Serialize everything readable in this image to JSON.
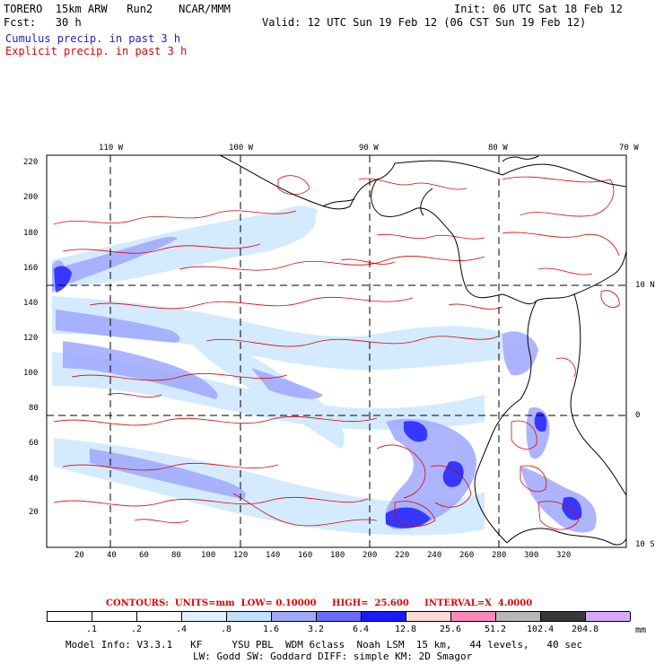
{
  "header": {
    "line1_left": "TORERO  15km ARW   Run2    NCAR/MMM",
    "line1_right": "Init: 06 UTC Sat 18 Feb 12",
    "line2_left": "Fcst:   30 h",
    "line2_right": "Valid: 12 UTC Sun 19 Feb 12 (06 CST Sun 19 Feb 12)",
    "cumulus_label": "Cumulus precip. in past 3 h",
    "explicit_label": "Explicit precip. in past 3 h"
  },
  "map": {
    "top_lon_labels": [
      "110 W",
      "100 W",
      "90 W",
      "80 W",
      "70 W"
    ],
    "right_lat_labels": [
      "10 N",
      "0",
      "10 S"
    ],
    "left_y_ticks": [
      "220",
      "200",
      "180",
      "160",
      "140",
      "120",
      "100",
      "80",
      "60",
      "40",
      "20"
    ],
    "bottom_x_ticks": [
      "20",
      "40",
      "60",
      "80",
      "100",
      "120",
      "140",
      "160",
      "180",
      "200",
      "220",
      "240",
      "260",
      "280",
      "300",
      "320"
    ]
  },
  "footer": {
    "contours_text": "CONTOURS:  UNITS=mm  LOW= 0.10000     HIGH=  25.600     INTERVAL=X  4.0000",
    "units": "mm",
    "colorbar_labels": [
      ".1",
      ".2",
      ".4",
      ".8",
      "1.6",
      "3.2",
      "6.4",
      "12.8",
      "25.6",
      "51.2",
      "102.4",
      "204.8"
    ],
    "colorbar_colors": [
      "#ffffff",
      "#ffffff",
      "#ffffff",
      "#dff3ff",
      "#bfe0ff",
      "#9fa8ff",
      "#6a6aff",
      "#1a1aff",
      "#ffd8d8",
      "#ff88b8",
      "#b8b8b8",
      "#383838",
      "#d8a8ff"
    ],
    "model_info_1": "Model Info: V3.3.1   KF     YSU PBL  WDM 6class  Noah LSM  15 km,   44 levels,   40 sec",
    "model_info_2": "LW: Godd SW: Goddard DIFF: simple KM: 2D Smagor"
  }
}
